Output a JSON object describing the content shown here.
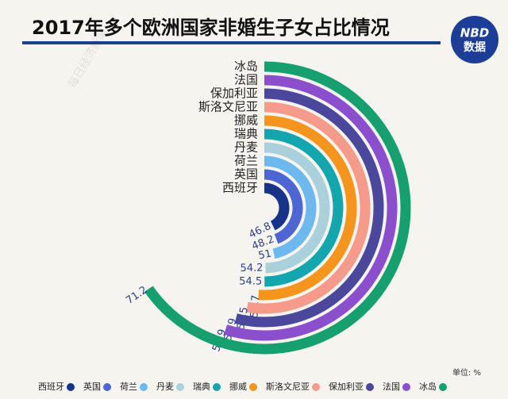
{
  "chart_data": {
    "type": "radial-bar",
    "title": "2017年多个欧洲国家非婚生子女占比情况",
    "logo": {
      "top": "NBD",
      "bottom": "数据"
    },
    "unit": "单位: %",
    "watermark": "每日经济新闻",
    "categories": [
      "西班牙",
      "英国",
      "荷兰",
      "丹麦",
      "瑞典",
      "挪威",
      "斯洛文尼亚",
      "保加利亚",
      "法国",
      "冰岛"
    ],
    "values": [
      46.8,
      48.2,
      51,
      54.2,
      54.5,
      55.7,
      57.5,
      58.9,
      59.9,
      71.2
    ],
    "colors": [
      "#17338a",
      "#4d66d4",
      "#6cb8ef",
      "#a9d0db",
      "#13a6ae",
      "#f5951d",
      "#f69a8b",
      "#4a479d",
      "#8b4fce",
      "#17a06f"
    ]
  }
}
